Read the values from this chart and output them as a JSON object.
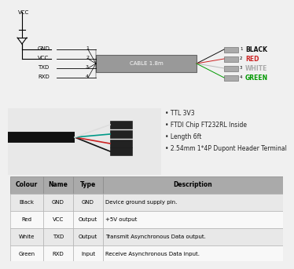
{
  "bg_color": "#f0f0f0",
  "cable_label": "CABLE 1.8m",
  "wire_labels_left": [
    "GND",
    "VCC",
    "TXD",
    "RXD"
  ],
  "wire_numbers_left": [
    "1",
    "2",
    "3",
    "4"
  ],
  "wire_labels_right": [
    "BLACK",
    "RED",
    "WHITE",
    "GREEN"
  ],
  "wire_colors_right": [
    "#111111",
    "#cc2222",
    "#aaaaaa",
    "#009900"
  ],
  "wire_colors_lines_right": [
    "#111111",
    "#cc2222",
    "#bbbbbb",
    "#009900"
  ],
  "wire_numbers_right": [
    "1",
    "2",
    "3",
    "4"
  ],
  "bullet_points": [
    "• TTL 3V3",
    "• FTDI Chip FT232RL Inside",
    "• Length 6ft",
    "• 2.54mm 1*4P Dupont Header Terminal"
  ],
  "table_headers": [
    "Colour",
    "Name",
    "Type",
    "Description"
  ],
  "table_rows": [
    [
      "Black",
      "GND",
      "GND",
      "Device ground supply pin."
    ],
    [
      "Red",
      "VCC",
      "Output",
      "+5V output"
    ],
    [
      "White",
      "TXD",
      "Output",
      "Transmit Asynchronous Data output."
    ],
    [
      "Green",
      "RXD",
      "Input",
      "Receive Asynchronous Data input."
    ]
  ],
  "table_header_bg": "#aaaaaa",
  "table_row_bg1": "#e8e8e8",
  "table_row_bg2": "#f8f8f8"
}
